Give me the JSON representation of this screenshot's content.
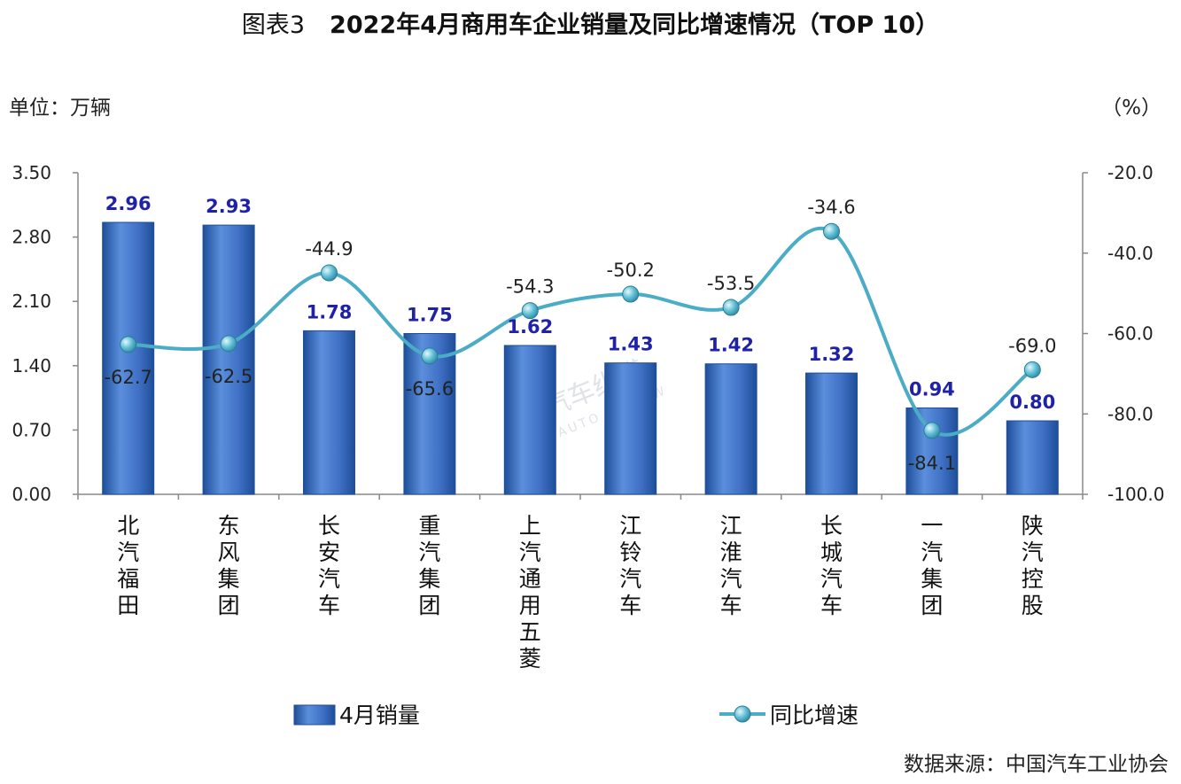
{
  "header": {
    "prefix": "图表3",
    "title": "2022年4月商用车企业销量及同比增速情况（TOP 10）"
  },
  "unit_left": "单位：万辆",
  "unit_right": "（%）",
  "source": "数据来源：中国汽车工业协会",
  "watermark": {
    "cn": "汽车纵横",
    "en": "AUTO REVIEW"
  },
  "colors": {
    "bar": "#3f70c4",
    "bar_dark": "#1e4e99",
    "line": "#4bacc6",
    "bar_label": "#1f22a8"
  },
  "chart_data": {
    "type": "bar",
    "categories": [
      "北汽福田",
      "东风集团",
      "长安汽车",
      "重汽集团",
      "上汽通用五菱",
      "江铃汽车",
      "江淮汽车",
      "长城汽车",
      "一汽集团",
      "陕汽控股"
    ],
    "series": [
      {
        "name": "4月销量",
        "type": "bar",
        "axis": "left",
        "values": [
          2.96,
          2.93,
          1.78,
          1.75,
          1.62,
          1.43,
          1.42,
          1.32,
          0.94,
          0.8
        ],
        "labels": [
          "2.96",
          "2.93",
          "1.78",
          "1.75",
          "1.62",
          "1.43",
          "1.42",
          "1.32",
          "0.94",
          "0.80"
        ]
      },
      {
        "name": "同比增速",
        "type": "line",
        "axis": "right",
        "values": [
          -62.7,
          -62.5,
          -44.9,
          -65.6,
          -54.3,
          -50.2,
          -53.5,
          -34.6,
          -84.1,
          -69.0
        ],
        "labels": [
          "-62.7",
          "-62.5",
          "-44.9",
          "-65.6",
          "-54.3",
          "-50.2",
          "-53.5",
          "-34.6",
          "-84.1",
          "-69.0"
        ]
      }
    ],
    "y_left": {
      "range": [
        0,
        3.5
      ],
      "ticks": [
        "0.00",
        "0.70",
        "1.40",
        "2.10",
        "2.80",
        "3.50"
      ]
    },
    "y_right": {
      "range": [
        -100,
        -20
      ],
      "ticks": [
        "-100.0",
        "-80.0",
        "-60.0",
        "-40.0",
        "-20.0"
      ]
    },
    "grid": false,
    "legend": "bottom"
  }
}
